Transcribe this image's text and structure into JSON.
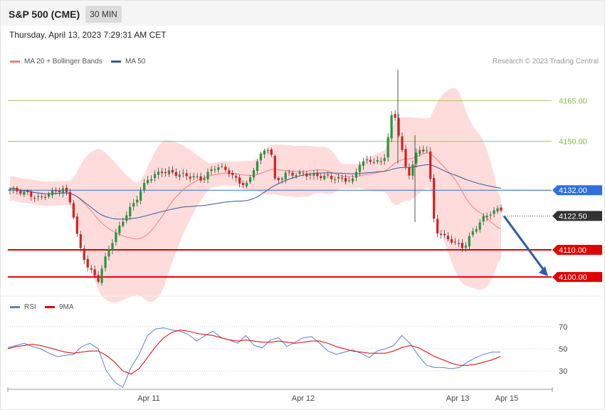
{
  "header": {
    "title": "S&P 500 (CME)",
    "timeframe": "30 MIN"
  },
  "datetime": "Thursday, April 13, 2023 7:29:31 AM CET",
  "legend_main": [
    {
      "label": "MA 20 + Bollinger Bands",
      "color": "#f08080"
    },
    {
      "label": "MA 50",
      "color": "#2e5b9a"
    }
  ],
  "legend_rsi": [
    {
      "label": "RSI",
      "color": "#5b7fd6"
    },
    {
      "label": "9MA",
      "color": "#e00000"
    }
  ],
  "credit": "Research © 2023 Trading Central",
  "colors": {
    "up": "#1f9a36",
    "down": "#d81e1e",
    "resistance": "#86c04a",
    "support": "#e00000",
    "pivot": "#2f6fe0",
    "last": "#333333",
    "forecast_arrow": "#2c5ea8",
    "band": "#ffd6d6"
  },
  "chart_data": [
    {
      "type": "candlestick",
      "title": "S&P 500 (CME)",
      "ylim": [
        4094,
        4178
      ],
      "x_ticks": [
        "Apr 11",
        "Apr 12",
        "Apr 13",
        "Apr 15"
      ],
      "levels": [
        {
          "label": "4165.00",
          "value": 4165,
          "kind": "resistance"
        },
        {
          "label": "4150.00",
          "value": 4150,
          "kind": "resistance"
        },
        {
          "label": "4132.00",
          "value": 4132,
          "kind": "pivot"
        },
        {
          "label": "4122.50",
          "value": 4122.5,
          "kind": "last"
        },
        {
          "label": "4110.00",
          "value": 4110,
          "kind": "support"
        },
        {
          "label": "4100.00",
          "value": 4100,
          "kind": "support"
        }
      ],
      "series": [
        {
          "name": "MA 20 + Bollinger Bands",
          "kind": "ma_band"
        },
        {
          "name": "MA 50",
          "kind": "ma"
        }
      ],
      "forecast_arrow": {
        "from": 4122.5,
        "to": 4100
      }
    },
    {
      "type": "line",
      "ylim": [
        12,
        78
      ],
      "y_ticks": [
        "70",
        "50",
        "30"
      ],
      "series": [
        {
          "name": "RSI",
          "values": [
            51,
            53,
            55,
            52,
            50,
            46,
            43,
            44,
            45,
            52,
            55,
            50,
            30,
            20,
            15,
            33,
            45,
            62,
            68,
            69,
            67,
            66,
            63,
            57,
            62,
            66,
            60,
            58,
            55,
            62,
            53,
            51,
            58,
            60,
            52,
            56,
            60,
            61,
            55,
            48,
            45,
            47,
            49,
            46,
            42,
            48,
            50,
            53,
            62,
            55,
            44,
            35,
            33,
            33,
            32,
            33,
            38,
            42,
            45,
            47,
            47
          ]
        },
        {
          "name": "9MA",
          "values": [
            50,
            52,
            53,
            54,
            53,
            51,
            49,
            47,
            46,
            47,
            48,
            48,
            44,
            38,
            30,
            27,
            32,
            42,
            52,
            60,
            65,
            67,
            66,
            64,
            63,
            62,
            60,
            58,
            57,
            58,
            57,
            56,
            56,
            57,
            56,
            55,
            56,
            57,
            57,
            55,
            52,
            50,
            48,
            47,
            46,
            46,
            46,
            48,
            51,
            53,
            51,
            47,
            43,
            40,
            37,
            35,
            35,
            36,
            38,
            40,
            43
          ]
        }
      ]
    }
  ]
}
